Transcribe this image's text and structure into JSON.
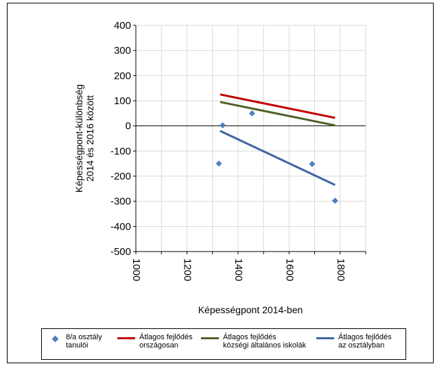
{
  "chart_data": {
    "type": "scatter",
    "title": "",
    "xlabel": "Képességpont 2014-ben",
    "ylabel_lines": [
      "Képességpont-különbség",
      "2014 és 2016 között"
    ],
    "xlim": [
      1000,
      1900
    ],
    "ylim": [
      -500,
      400
    ],
    "x_ticks": [
      "1000",
      "1200",
      "1400",
      "1600",
      "1800"
    ],
    "x_tick_values": [
      1000,
      1200,
      1400,
      1600,
      1800
    ],
    "y_ticks": [
      "400",
      "300",
      "200",
      "100",
      "0",
      "-100",
      "-200",
      "-300",
      "-400",
      "-500"
    ],
    "y_tick_values": [
      400,
      300,
      200,
      100,
      0,
      -100,
      -200,
      -300,
      -400,
      -500
    ],
    "grid": true,
    "legend_position": "bottom",
    "series": [
      {
        "name": "8/a osztály tanulói",
        "legend_lines": [
          "8/a osztály",
          "tanulói"
        ],
        "kind": "points",
        "color": "#4f81bd",
        "points": [
          [
            1325,
            -150
          ],
          [
            1340,
            2
          ],
          [
            1455,
            50
          ],
          [
            1690,
            -152
          ],
          [
            1780,
            -298
          ]
        ]
      },
      {
        "name": "Átlagos fejlődés országosan",
        "legend_lines": [
          "Átlagos fejlődés",
          "országosan"
        ],
        "kind": "line",
        "color": "#c00000",
        "points": [
          [
            1330,
            125
          ],
          [
            1780,
            32
          ]
        ]
      },
      {
        "name": "Átlagos fejlődés községi általános iskolák",
        "legend_lines": [
          "Átlagos fejlődés",
          "községi általános iskolák"
        ],
        "kind": "line",
        "color": "#4f6228",
        "points": [
          [
            1330,
            95
          ],
          [
            1780,
            2
          ]
        ]
      },
      {
        "name": "Átlagos fejlődés az osztályban",
        "legend_lines": [
          "Átlagos fejlődés",
          "az osztályban"
        ],
        "kind": "line",
        "color": "#3c66a0",
        "points": [
          [
            1330,
            -20
          ],
          [
            1780,
            -235
          ]
        ]
      }
    ]
  }
}
